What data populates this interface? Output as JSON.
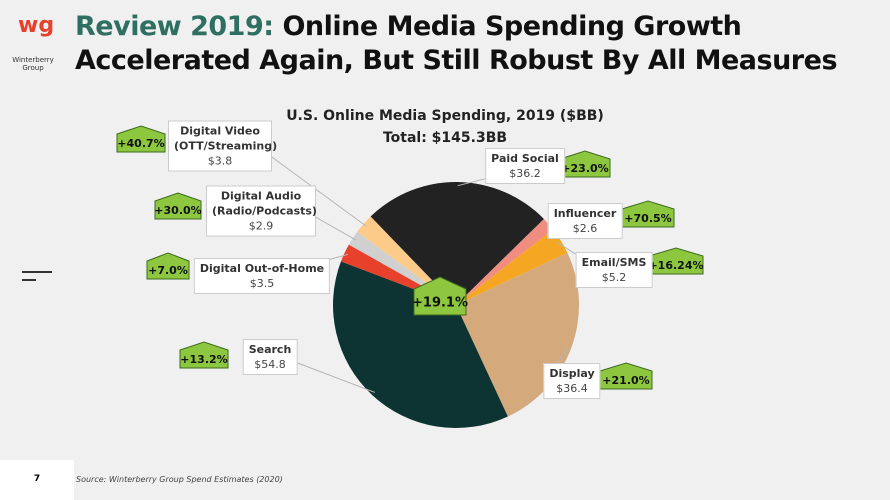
{
  "slide": {
    "title_highlight": "Review 2019:",
    "title_rest": "Online Media Spending Growth",
    "title_line2": "Accelerated Again, But Still Robust By All Measures",
    "logo_mark": "wg",
    "logo_name": "Winterberry Group",
    "page_number": "7",
    "source": "Source: Winterberry Group Spend Estimates (2020)"
  },
  "chart_data": {
    "type": "pie",
    "title": "U.S. Online Media Spending, 2019 ($BB)",
    "subtitle": "Total: $145.3BB",
    "categories": [
      "Paid Social",
      "Influencer",
      "Email/SMS",
      "Display",
      "Search",
      "Digital Out-of-Home",
      "Digital Audio (Radio/Podcasts)",
      "Digital Video (OTT/Streaming)"
    ],
    "values": [
      36.2,
      2.6,
      5.2,
      36.4,
      54.8,
      3.5,
      2.9,
      3.8
    ],
    "value_labels": [
      "$36.2",
      "$2.6",
      "$5.2",
      "$36.4",
      "$54.8",
      "$3.5",
      "$2.9",
      "$3.8"
    ],
    "growth_labels": [
      "+23.0%",
      "+70.5%",
      "+16.24%",
      "+21.0%",
      "+13.2%",
      "+7.0%",
      "+30.0%",
      "+40.7%"
    ],
    "total_growth_label": "+19.1%",
    "colors": [
      "#222222",
      "#f08c80",
      "#f5a623",
      "#d4aa7d",
      "#0e3333",
      "#e8412b",
      "#d0d0d0",
      "#fccb8a"
    ]
  }
}
